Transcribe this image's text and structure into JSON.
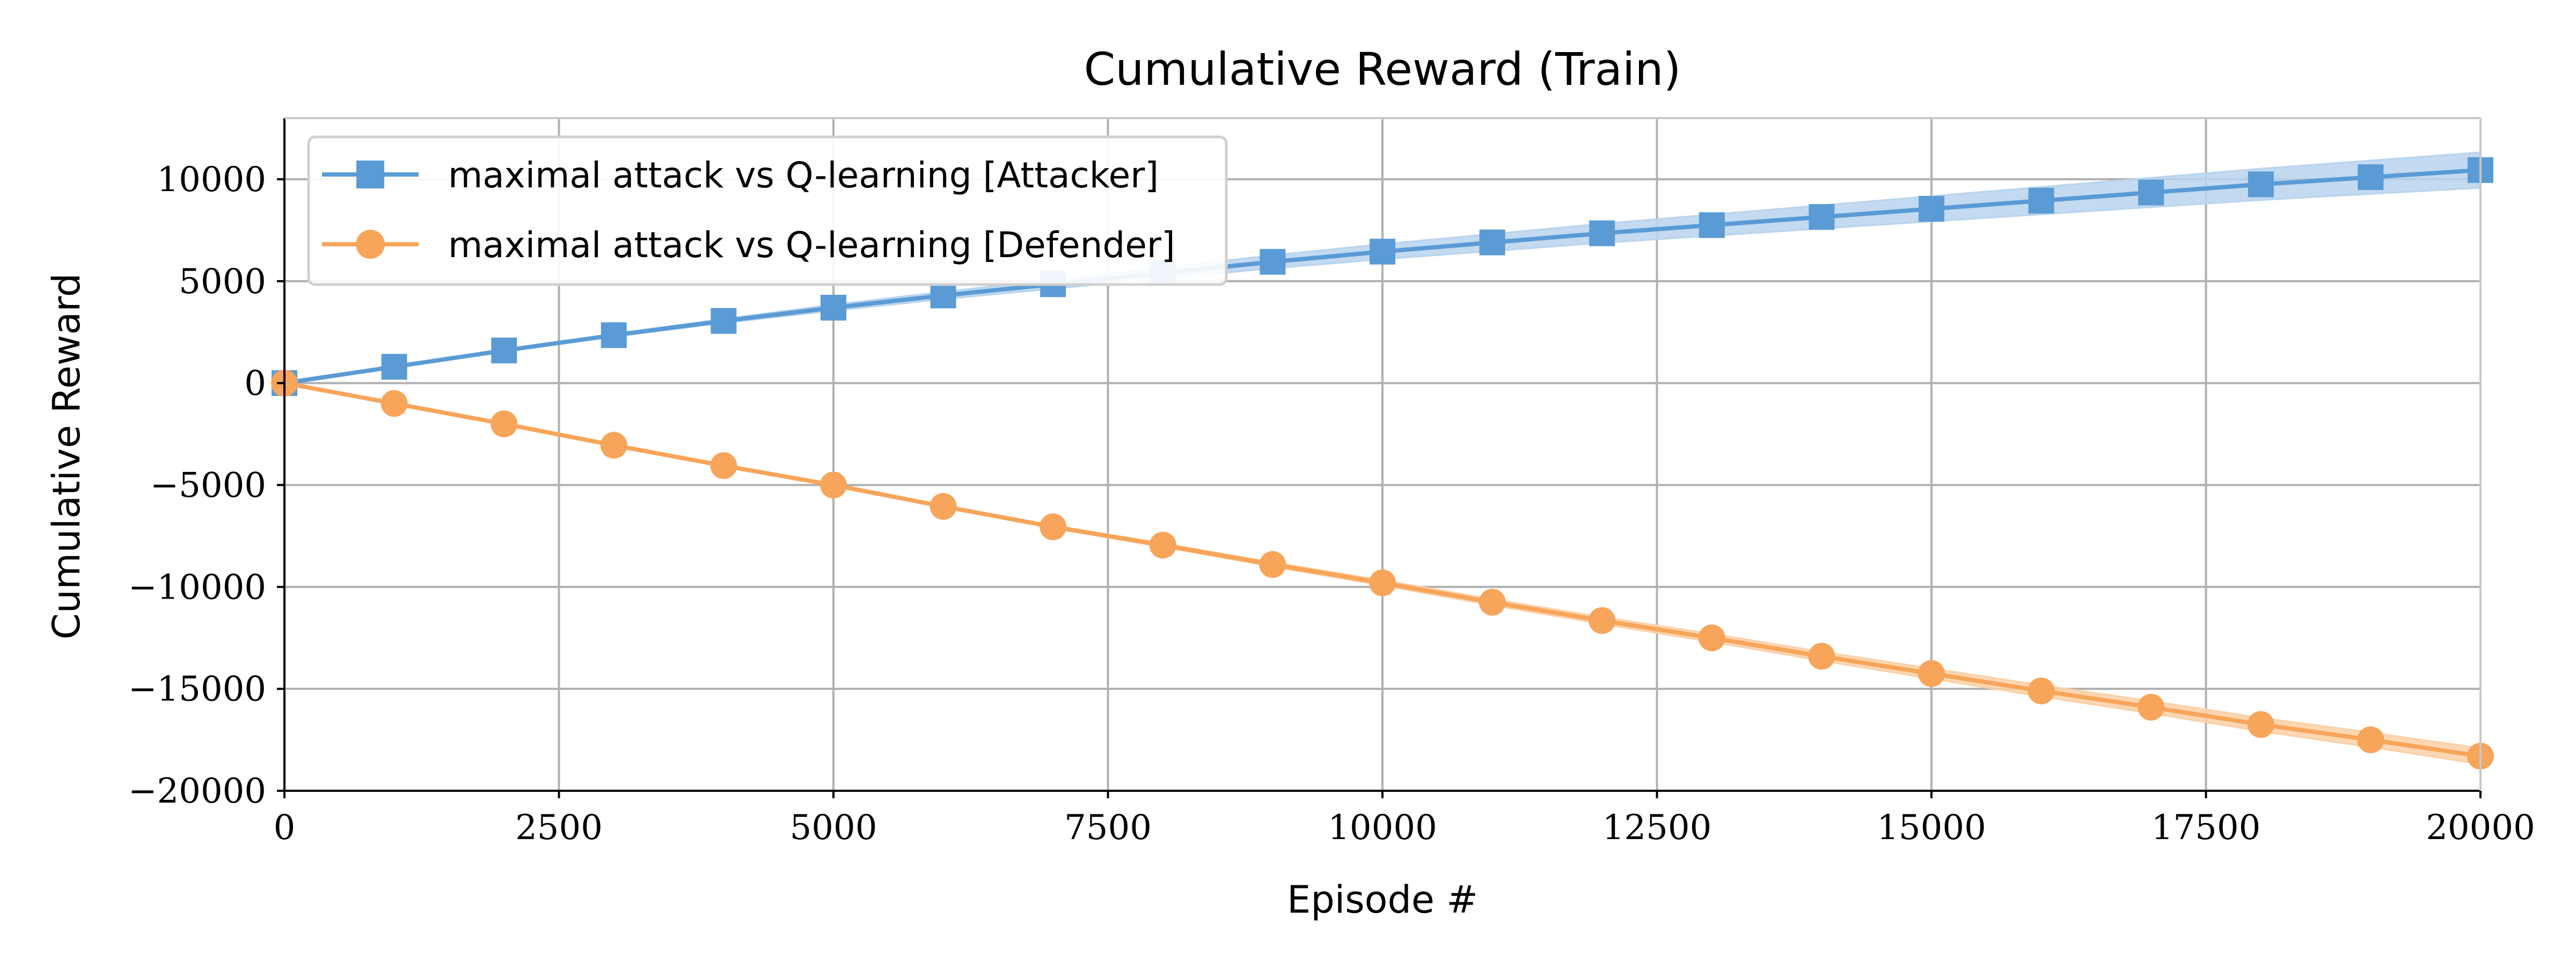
{
  "chart_data": {
    "type": "line",
    "title": "Cumulative Reward (Train)",
    "xlabel": "Episode #",
    "ylabel": "Cumulative Reward",
    "xlim": [
      0,
      20000
    ],
    "ylim": [
      -20000,
      13000
    ],
    "xticks": [
      0,
      2500,
      5000,
      7500,
      10000,
      12500,
      15000,
      17500,
      20000
    ],
    "xtick_labels": [
      "0",
      "2500",
      "5000",
      "7500",
      "10000",
      "12500",
      "15000",
      "17500",
      "20000"
    ],
    "yticks": [
      -20000,
      -15000,
      -10000,
      -5000,
      0,
      5000,
      10000
    ],
    "ytick_labels": [
      "−20000",
      "−15000",
      "−10000",
      "−5000",
      "0",
      "5000",
      "10000"
    ],
    "grid": true,
    "legend_position": "top-left",
    "x": [
      0,
      1000,
      2000,
      3000,
      4000,
      5000,
      6000,
      7000,
      8000,
      9000,
      10000,
      11000,
      12000,
      13000,
      14000,
      15000,
      16000,
      17000,
      18000,
      19000,
      20000
    ],
    "series": [
      {
        "name": "maximal attack vs Q-learning [Attacker]",
        "color": "#5a9bd5",
        "band_color": "#b8d4ee",
        "marker": "square",
        "values": [
          0,
          800,
          1600,
          2350,
          3050,
          3700,
          4300,
          4850,
          5400,
          5950,
          6450,
          6900,
          7350,
          7750,
          8150,
          8550,
          8950,
          9350,
          9750,
          10100,
          10450
        ],
        "band_low": [
          0,
          780,
          1560,
          2280,
          2950,
          3550,
          4120,
          4630,
          5130,
          5630,
          6080,
          6480,
          6880,
          7230,
          7580,
          7930,
          8280,
          8630,
          8980,
          9280,
          9580
        ],
        "band_high": [
          0,
          820,
          1640,
          2420,
          3150,
          3850,
          4480,
          5070,
          5670,
          6270,
          6820,
          7320,
          7820,
          8270,
          8720,
          9170,
          9620,
          10070,
          10520,
          10920,
          11320
        ]
      },
      {
        "name": "maximal attack vs Q-learning [Defender]",
        "color": "#f7a55a",
        "band_color": "#fbd0a6",
        "marker": "circle",
        "values": [
          0,
          -1000,
          -2000,
          -3050,
          -4050,
          -5000,
          -6050,
          -7050,
          -7950,
          -8900,
          -9800,
          -10750,
          -11650,
          -12500,
          -13400,
          -14250,
          -15100,
          -15900,
          -16750,
          -17500,
          -18300
        ],
        "band_low": [
          0,
          -1010,
          -2020,
          -3080,
          -4090,
          -5050,
          -6110,
          -7120,
          -8040,
          -9010,
          -9930,
          -10900,
          -11820,
          -12700,
          -13620,
          -14500,
          -15380,
          -16200,
          -17080,
          -17860,
          -18690
        ],
        "band_high": [
          0,
          -990,
          -1980,
          -3020,
          -4010,
          -4950,
          -5990,
          -6980,
          -7860,
          -8790,
          -9670,
          -10600,
          -11480,
          -12300,
          -13180,
          -14000,
          -14820,
          -15600,
          -16420,
          -17140,
          -17910
        ]
      }
    ]
  }
}
